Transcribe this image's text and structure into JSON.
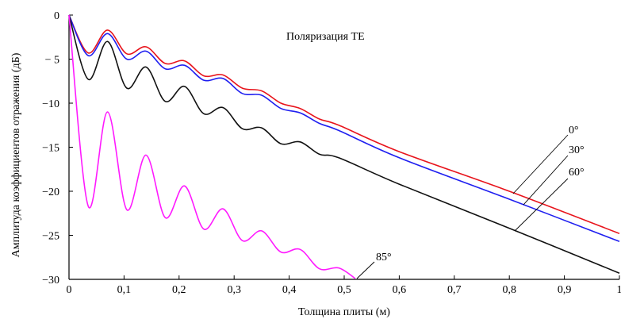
{
  "chart_data": {
    "type": "line",
    "title": "",
    "annotation": "Поляризация TE",
    "xlabel": "Толщина плиты (м)",
    "ylabel": "Амплитуда коэффициентов отражения (дБ)",
    "xlim": [
      0,
      1
    ],
    "ylim": [
      -30,
      0
    ],
    "xticks": [
      0,
      0.1,
      0.2,
      0.3,
      0.4,
      0.5,
      0.6,
      0.7,
      0.8,
      0.9,
      1
    ],
    "xtick_labels": [
      "0",
      "0,1",
      "0,2",
      "0,3",
      "0,4",
      "0,5",
      "0,6",
      "0,7",
      "0,8",
      "0,9",
      "1"
    ],
    "yticks": [
      0,
      -5,
      -10,
      -15,
      -20,
      -25,
      -30
    ],
    "ytick_labels": [
      "0",
      "− 5",
      "−10",
      "−15",
      "−20",
      "−25",
      "−30"
    ],
    "grid": false,
    "series": [
      {
        "name": "0°",
        "color": "#e8141c",
        "x": [
          0,
          0.035,
          0.07,
          0.105,
          0.14,
          0.175,
          0.21,
          0.245,
          0.28,
          0.315,
          0.35,
          0.385,
          0.42,
          0.455,
          0.49,
          0.6,
          0.8,
          1.0
        ],
        "y": [
          0,
          -4.3,
          -1.7,
          -4.4,
          -3.6,
          -5.5,
          -5.2,
          -6.9,
          -6.8,
          -8.3,
          -8.6,
          -10.0,
          -10.6,
          -11.8,
          -12.5,
          -15.5,
          -20.0,
          -24.8
        ]
      },
      {
        "name": "30°",
        "color": "#1f1ff0",
        "x": [
          0,
          0.035,
          0.07,
          0.105,
          0.14,
          0.175,
          0.21,
          0.245,
          0.28,
          0.315,
          0.35,
          0.385,
          0.42,
          0.455,
          0.49,
          0.6,
          0.8,
          1.0
        ],
        "y": [
          0,
          -4.6,
          -2.1,
          -5.0,
          -4.1,
          -6.1,
          -5.7,
          -7.4,
          -7.2,
          -8.9,
          -9.1,
          -10.6,
          -11.1,
          -12.3,
          -13.1,
          -16.2,
          -20.9,
          -25.7
        ]
      },
      {
        "name": "60°",
        "color": "#111111",
        "x": [
          0,
          0.035,
          0.07,
          0.105,
          0.14,
          0.175,
          0.21,
          0.245,
          0.28,
          0.315,
          0.35,
          0.385,
          0.42,
          0.455,
          0.49,
          0.6,
          0.8,
          1.0
        ],
        "y": [
          0,
          -7.3,
          -3.0,
          -8.3,
          -5.9,
          -9.8,
          -8.1,
          -11.2,
          -10.5,
          -12.9,
          -12.8,
          -14.6,
          -14.4,
          -15.8,
          -16.2,
          -19.2,
          -24.2,
          -29.3
        ]
      },
      {
        "name": "85°",
        "color": "#ff1aff",
        "x": [
          0,
          0.035,
          0.07,
          0.105,
          0.14,
          0.175,
          0.21,
          0.245,
          0.28,
          0.315,
          0.35,
          0.385,
          0.42,
          0.455,
          0.49,
          0.52
        ],
        "y": [
          0,
          -21.7,
          -11.0,
          -22.1,
          -15.9,
          -23.0,
          -19.4,
          -24.3,
          -22.0,
          -25.6,
          -24.5,
          -26.9,
          -26.6,
          -28.8,
          -28.7,
          -29.9
        ]
      }
    ],
    "labels": [
      {
        "text": "0°",
        "series": 0
      },
      {
        "text": "30°",
        "series": 1
      },
      {
        "text": "60°",
        "series": 2
      },
      {
        "text": "85°",
        "series": 3
      }
    ]
  }
}
